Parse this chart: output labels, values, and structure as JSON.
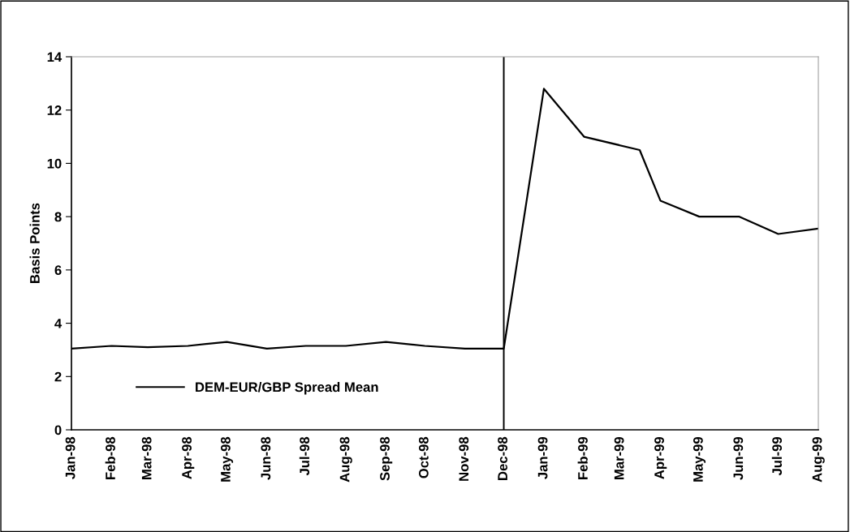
{
  "chart_data": {
    "type": "line",
    "ylabel": "Basis Points",
    "x": [
      "1998-01-01",
      "1998-02-01",
      "1998-03-01",
      "1998-04-01",
      "1998-05-01",
      "1998-06-01",
      "1998-07-01",
      "1998-08-01",
      "1998-09-01",
      "1998-10-01",
      "1998-11-01",
      "1998-12-01",
      "1999-01-01",
      "1999-02-01",
      "1999-03-16",
      "1999-04-01",
      "1999-05-01",
      "1999-06-01",
      "1999-07-01",
      "1999-08-01"
    ],
    "series": [
      {
        "name": "DEM-EUR/GBP Spread Mean",
        "color": "#000000",
        "values": [
          3.05,
          3.15,
          3.1,
          3.15,
          3.3,
          3.05,
          3.15,
          3.15,
          3.3,
          3.15,
          3.05,
          3.05,
          12.8,
          11.0,
          10.5,
          8.6,
          8.0,
          8.0,
          7.35,
          7.55
        ]
      }
    ],
    "xlim": [
      "1998-01-01",
      "1999-08-01"
    ],
    "xticks": [
      {
        "value": "1998-01-01",
        "label": "Jan-98"
      },
      {
        "value": "1998-02-01",
        "label": "Feb-98"
      },
      {
        "value": "1998-03-01",
        "label": "Mar-98"
      },
      {
        "value": "1998-04-01",
        "label": "Apr-98"
      },
      {
        "value": "1998-05-01",
        "label": "May-98"
      },
      {
        "value": "1998-06-01",
        "label": "Jun-98"
      },
      {
        "value": "1998-07-01",
        "label": "Jul-98"
      },
      {
        "value": "1998-08-01",
        "label": "Aug-98"
      },
      {
        "value": "1998-09-01",
        "label": "Sep-98"
      },
      {
        "value": "1998-10-01",
        "label": "Oct-98"
      },
      {
        "value": "1998-11-01",
        "label": "Nov-98"
      },
      {
        "value": "1998-12-01",
        "label": "Dec-98"
      },
      {
        "value": "1999-01-01",
        "label": "Jan-99"
      },
      {
        "value": "1999-02-01",
        "label": "Feb-99"
      },
      {
        "value": "1999-03-01",
        "label": "Mar-99"
      },
      {
        "value": "1999-04-01",
        "label": "Apr-99"
      },
      {
        "value": "1999-05-01",
        "label": "May-99"
      },
      {
        "value": "1999-06-01",
        "label": "Jun-99"
      },
      {
        "value": "1999-07-01",
        "label": "Jul-99"
      },
      {
        "value": "1999-08-01",
        "label": "Aug-99"
      }
    ],
    "ylim": [
      0,
      14
    ],
    "yticks": [
      0,
      2,
      4,
      6,
      8,
      10,
      12,
      14
    ],
    "ref_lines": [
      {
        "axis": "x",
        "value": "1998-12-01",
        "color": "#000000"
      }
    ],
    "grid": false,
    "legend": "bottom left",
    "marker": "none",
    "line_style": "solid"
  }
}
